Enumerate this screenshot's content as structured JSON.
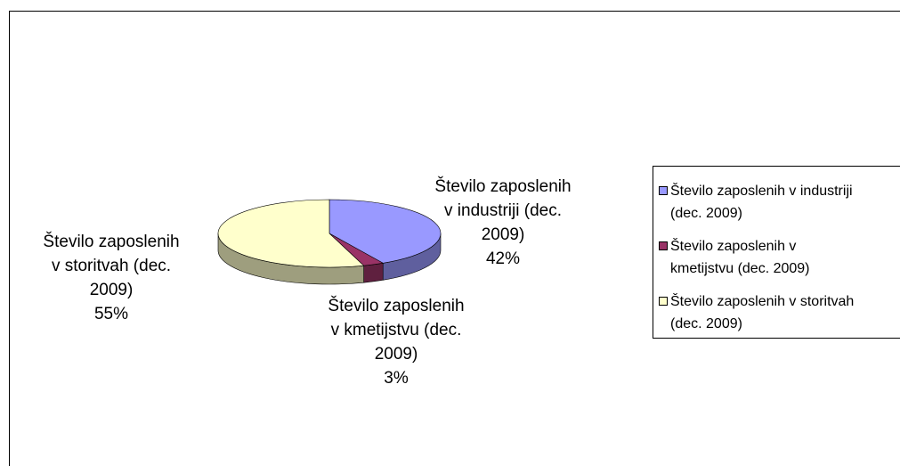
{
  "chart_data": {
    "type": "pie",
    "categories": [
      "Število zaposlenih v industriji (dec. 2009)",
      "Število zaposlenih v kmetijstvu (dec. 2009)",
      "Število zaposlenih v storitvah (dec. 2009)"
    ],
    "values": [
      42,
      3,
      55
    ],
    "value_labels": [
      "42%",
      "3%",
      "55%"
    ],
    "colors": [
      "#9999ff",
      "#993366",
      "#ffffcc"
    ],
    "legend": "right"
  }
}
